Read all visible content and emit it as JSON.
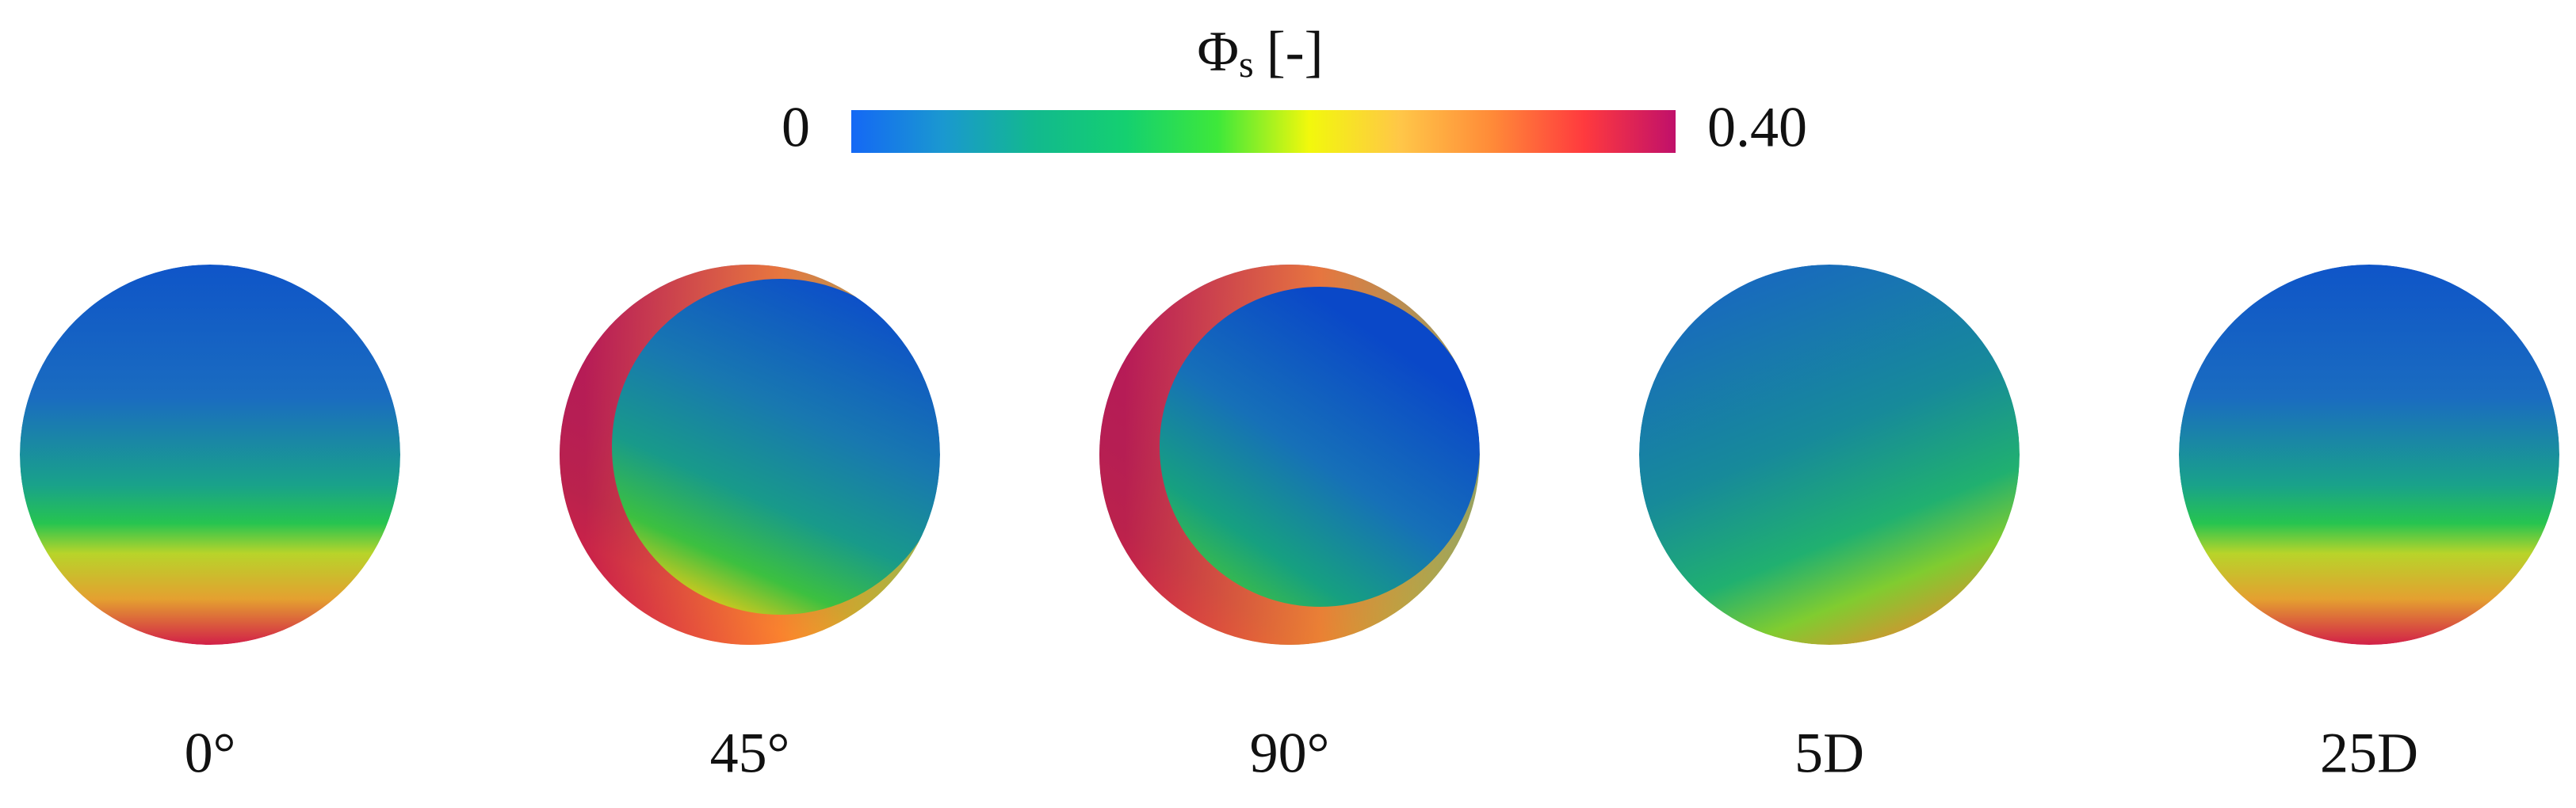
{
  "colorbar": {
    "title": "Φ",
    "title_subscript": "s",
    "title_unit": "[-]",
    "lim": [
      0,
      0.4
    ],
    "ticks": [
      0,
      {
        "value": 0.4,
        "label": "0.40"
      }
    ],
    "colormap": [
      "#1468f5",
      "#1a98d0",
      "#12b98e",
      "#14d070",
      "#3ee83a",
      "#f2f80c",
      "#ffc648",
      "#ff8a38",
      "#ff3a3e",
      "#c0106a"
    ]
  },
  "panels": [
    {
      "label": "0°"
    },
    {
      "label": "45°"
    },
    {
      "label": "90°"
    },
    {
      "label": "5D"
    },
    {
      "label": "25D"
    }
  ]
}
